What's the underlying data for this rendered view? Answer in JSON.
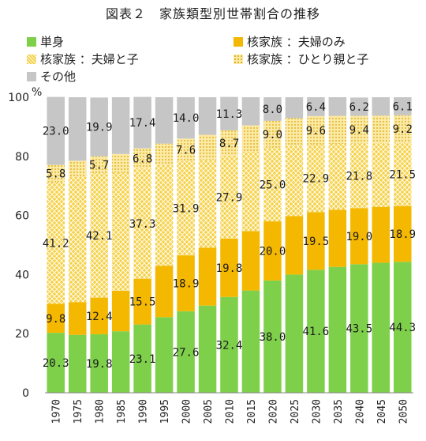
{
  "title": "図表２　家族類型別世帯割合の推移",
  "legend": [
    {
      "label": "単身",
      "color": "#7ed04b",
      "pattern": "solid"
    },
    {
      "label": "核家族 ：夫婦のみ",
      "color": "#f5b800",
      "pattern": "solid"
    },
    {
      "label": "核家族 ：夫婦と子",
      "color": "#f5d24a",
      "pattern": "cross"
    },
    {
      "label": "核家族 ：ひとり親と子",
      "color": "#f7dc6a",
      "pattern": "dots"
    },
    {
      "label": "その他",
      "color": "#c6c6c6",
      "pattern": "solid"
    }
  ],
  "chart_data": {
    "type": "bar",
    "stacked": true,
    "unit": "%",
    "ylim": [
      0,
      100
    ],
    "yticks": [
      "0",
      "20",
      "40",
      "60",
      "80",
      "100"
    ],
    "categories": [
      "1970",
      "1975",
      "1980",
      "1985",
      "1990",
      "1995",
      "2000",
      "2005",
      "2010",
      "2015",
      "2020",
      "2025",
      "2030",
      "2035",
      "2040",
      "2045",
      "2050"
    ],
    "series": [
      {
        "name": "単身",
        "color": "#7ed04b",
        "values": [
          20.3,
          19.6,
          19.8,
          20.8,
          23.1,
          25.6,
          27.6,
          29.5,
          32.4,
          34.6,
          38.0,
          40.0,
          41.6,
          42.6,
          43.5,
          44.0,
          44.3
        ],
        "labels": [
          "20.3",
          "",
          "19.8",
          "",
          "23.1",
          "",
          "27.6",
          "",
          "32.4",
          "",
          "38.0",
          "",
          "41.6",
          "",
          "43.5",
          "",
          "44.3"
        ]
      },
      {
        "name": "核家族 ：夫婦のみ",
        "color": "#f5b800",
        "values": [
          9.8,
          11.1,
          12.4,
          13.7,
          15.5,
          17.4,
          18.9,
          19.6,
          19.8,
          20.1,
          20.0,
          19.8,
          19.5,
          19.3,
          19.0,
          18.9,
          18.9
        ],
        "labels": [
          "9.8",
          "",
          "12.4",
          "",
          "15.5",
          "",
          "18.9",
          "",
          "19.8",
          "",
          "20.0",
          "",
          "19.5",
          "",
          "19.0",
          "",
          "18.9"
        ]
      },
      {
        "name": "核家族 ：夫婦と子",
        "color": "#f5d24a",
        "values": [
          41.2,
          42.5,
          42.1,
          40.0,
          37.3,
          34.2,
          31.9,
          29.8,
          27.9,
          26.9,
          25.0,
          23.8,
          22.9,
          22.3,
          21.8,
          21.6,
          21.5
        ],
        "labels": [
          "41.2",
          "",
          "42.1",
          "",
          "37.3",
          "",
          "31.9",
          "",
          "27.9",
          "",
          "25.0",
          "",
          "22.9",
          "",
          "21.8",
          "",
          "21.5"
        ]
      },
      {
        "name": "核家族 ：ひとり親と子",
        "color": "#f7dc6a",
        "values": [
          5.8,
          5.3,
          5.7,
          6.3,
          6.8,
          7.1,
          7.6,
          8.4,
          8.7,
          8.9,
          9.0,
          9.3,
          9.6,
          9.5,
          9.4,
          9.3,
          9.2
        ],
        "labels": [
          "5.8",
          "",
          "5.7",
          "",
          "6.8",
          "",
          "7.6",
          "",
          "8.7",
          "",
          "9.0",
          "",
          "9.6",
          "",
          "9.4",
          "",
          "9.2"
        ]
      },
      {
        "name": "その他",
        "color": "#c6c6c6",
        "values": [
          23.0,
          21.5,
          19.9,
          19.2,
          17.4,
          15.7,
          14.0,
          12.7,
          11.3,
          9.5,
          8.0,
          7.1,
          6.4,
          6.3,
          6.2,
          6.2,
          6.1
        ],
        "labels": [
          "23.0",
          "",
          "19.9",
          "",
          "17.4",
          "",
          "14.0",
          "",
          "11.3",
          "",
          "8.0",
          "",
          "6.4",
          "",
          "6.2",
          "",
          "6.1"
        ]
      }
    ]
  }
}
